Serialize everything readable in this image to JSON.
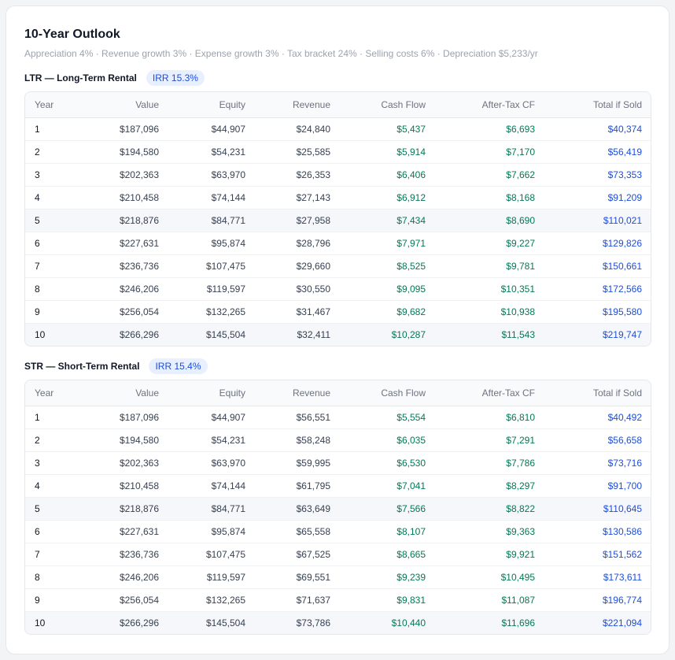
{
  "outlook": {
    "title": "10-Year Outlook",
    "assumptions": "Appreciation 4% · Revenue growth 3% · Expense growth 3% · Tax bracket 24% · Selling costs 6% · Depreciation $5,233/yr"
  },
  "columns": [
    "Year",
    "Value",
    "Equity",
    "Revenue",
    "Cash Flow",
    "After-Tax CF",
    "Total if Sold"
  ],
  "colors": {
    "cash_flow": "#047857",
    "total_if_sold": "#1d4ed8",
    "irr_badge_bg": "#e8efff",
    "irr_badge_text": "#1d4ed8"
  },
  "ltr": {
    "label": "LTR — Long-Term Rental",
    "irr": "IRR 15.3%",
    "rows": [
      [
        "1",
        "$187,096",
        "$44,907",
        "$24,840",
        "$5,437",
        "$6,693",
        "$40,374"
      ],
      [
        "2",
        "$194,580",
        "$54,231",
        "$25,585",
        "$5,914",
        "$7,170",
        "$56,419"
      ],
      [
        "3",
        "$202,363",
        "$63,970",
        "$26,353",
        "$6,406",
        "$7,662",
        "$73,353"
      ],
      [
        "4",
        "$210,458",
        "$74,144",
        "$27,143",
        "$6,912",
        "$8,168",
        "$91,209"
      ],
      [
        "5",
        "$218,876",
        "$84,771",
        "$27,958",
        "$7,434",
        "$8,690",
        "$110,021"
      ],
      [
        "6",
        "$227,631",
        "$95,874",
        "$28,796",
        "$7,971",
        "$9,227",
        "$129,826"
      ],
      [
        "7",
        "$236,736",
        "$107,475",
        "$29,660",
        "$8,525",
        "$9,781",
        "$150,661"
      ],
      [
        "8",
        "$246,206",
        "$119,597",
        "$30,550",
        "$9,095",
        "$10,351",
        "$172,566"
      ],
      [
        "9",
        "$256,054",
        "$132,265",
        "$31,467",
        "$9,682",
        "$10,938",
        "$195,580"
      ],
      [
        "10",
        "$266,296",
        "$145,504",
        "$32,411",
        "$10,287",
        "$11,543",
        "$219,747"
      ]
    ]
  },
  "str": {
    "label": "STR — Short-Term Rental",
    "irr": "IRR 15.4%",
    "rows": [
      [
        "1",
        "$187,096",
        "$44,907",
        "$56,551",
        "$5,554",
        "$6,810",
        "$40,492"
      ],
      [
        "2",
        "$194,580",
        "$54,231",
        "$58,248",
        "$6,035",
        "$7,291",
        "$56,658"
      ],
      [
        "3",
        "$202,363",
        "$63,970",
        "$59,995",
        "$6,530",
        "$7,786",
        "$73,716"
      ],
      [
        "4",
        "$210,458",
        "$74,144",
        "$61,795",
        "$7,041",
        "$8,297",
        "$91,700"
      ],
      [
        "5",
        "$218,876",
        "$84,771",
        "$63,649",
        "$7,566",
        "$8,822",
        "$110,645"
      ],
      [
        "6",
        "$227,631",
        "$95,874",
        "$65,558",
        "$8,107",
        "$9,363",
        "$130,586"
      ],
      [
        "7",
        "$236,736",
        "$107,475",
        "$67,525",
        "$8,665",
        "$9,921",
        "$151,562"
      ],
      [
        "8",
        "$246,206",
        "$119,597",
        "$69,551",
        "$9,239",
        "$10,495",
        "$173,611"
      ],
      [
        "9",
        "$256,054",
        "$132,265",
        "$71,637",
        "$9,831",
        "$11,087",
        "$196,774"
      ],
      [
        "10",
        "$266,296",
        "$145,504",
        "$73,786",
        "$10,440",
        "$11,696",
        "$221,094"
      ]
    ]
  }
}
